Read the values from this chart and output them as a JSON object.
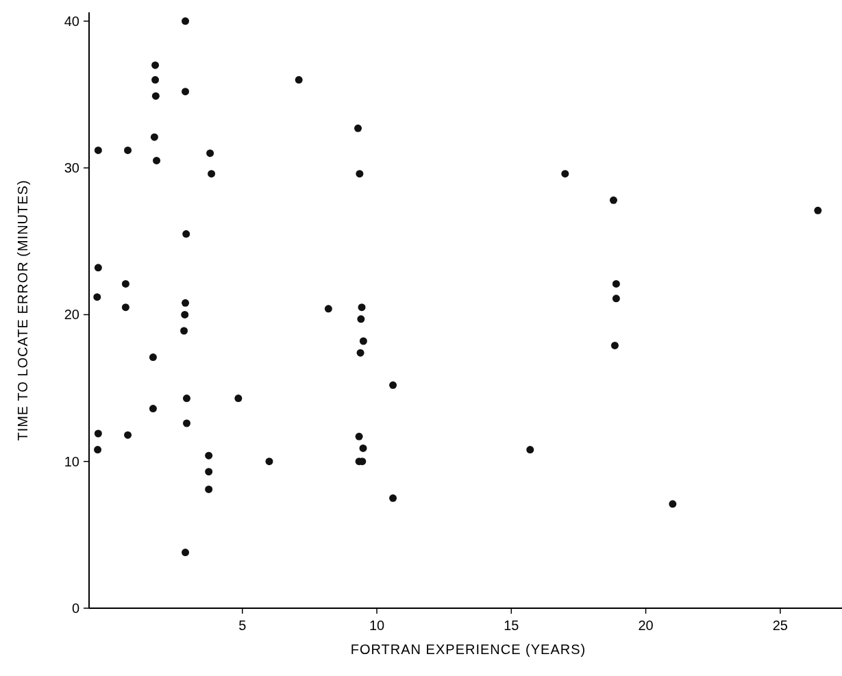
{
  "chart_data": {
    "type": "scatter",
    "xlabel": "FORTRAN EXPERIENCE (YEARS)",
    "ylabel": "TIME TO LOCATE ERROR (MINUTES)",
    "xlim": [
      -0.7,
      27.5
    ],
    "ylim": [
      0,
      40.6
    ],
    "xticks": [
      5,
      10,
      15,
      20,
      25
    ],
    "yticks": [
      0,
      10,
      20,
      30,
      40
    ],
    "grid": false,
    "marker": "circle",
    "series": [
      {
        "color": "#111111",
        "x": [
          -0.36,
          -0.36,
          -0.4,
          -0.36,
          -0.38,
          0.74,
          0.66,
          0.66,
          0.74,
          1.76,
          1.76,
          1.78,
          1.73,
          1.81,
          1.68,
          1.68,
          2.88,
          2.88,
          2.91,
          2.88,
          2.86,
          2.83,
          2.93,
          2.93,
          2.88,
          3.8,
          3.85,
          3.75,
          3.75,
          3.75,
          4.85,
          6.0,
          7.1,
          8.2,
          9.3,
          9.36,
          9.34,
          9.34,
          9.44,
          9.41,
          9.5,
          9.39,
          9.49,
          9.46,
          10.6,
          10.6,
          15.7,
          17.0,
          18.8,
          18.9,
          18.9,
          18.85,
          21.0,
          26.4
        ],
        "values": [
          31.2,
          23.2,
          21.2,
          11.9,
          10.8,
          31.2,
          22.1,
          20.5,
          11.8,
          37.0,
          36.0,
          34.9,
          32.1,
          30.5,
          17.1,
          13.6,
          40.0,
          35.2,
          25.5,
          20.8,
          20.0,
          18.9,
          14.3,
          12.6,
          3.8,
          31.0,
          29.6,
          10.4,
          9.3,
          8.1,
          14.3,
          10.0,
          36.0,
          20.4,
          32.7,
          29.6,
          11.7,
          10.0,
          20.5,
          19.7,
          18.2,
          17.4,
          10.9,
          10.0,
          7.5,
          15.2,
          10.8,
          29.6,
          27.8,
          22.1,
          21.1,
          17.9,
          7.1,
          27.1
        ]
      }
    ]
  }
}
